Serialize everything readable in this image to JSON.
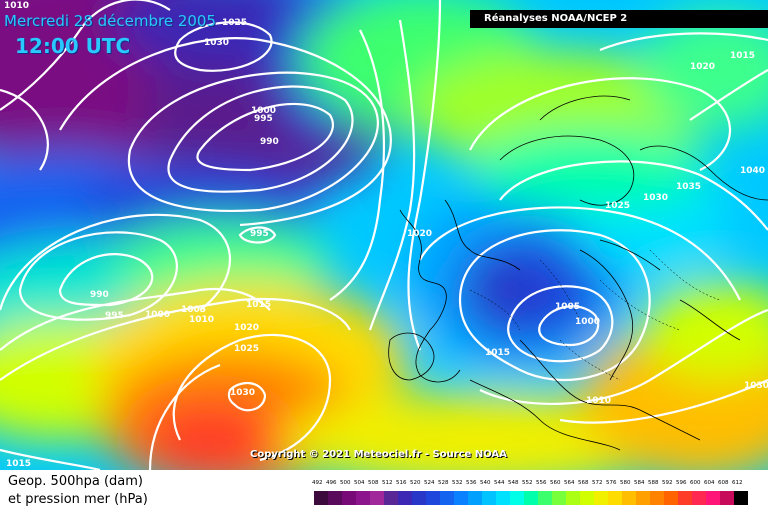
{
  "header": {
    "date": "Mercredi 28 décembre 2005",
    "time": "12:00 UTC",
    "source": "Réanalyses NOAA/NCEP 2"
  },
  "copyright": "Copyright © 2021 Meteociel.fr - Source NOAA",
  "legend": {
    "title_line1": "Geop. 500hpa (dam)",
    "title_line2": "et pression mer (hPa)",
    "ticks": [
      "492",
      "496",
      "500",
      "504",
      "508",
      "512",
      "516",
      "520",
      "524",
      "528",
      "532",
      "536",
      "540",
      "544",
      "548",
      "552",
      "556",
      "560",
      "564",
      "568",
      "572",
      "576",
      "580",
      "584",
      "588",
      "592",
      "596",
      "600",
      "604",
      "608",
      "612"
    ],
    "colors": [
      "#3c0a3c",
      "#5a0a5a",
      "#780a78",
      "#8c148c",
      "#a0289b",
      "#5a2896",
      "#3c28b4",
      "#2837c8",
      "#1e46dc",
      "#1464f0",
      "#0a82ff",
      "#00a0ff",
      "#00c3ff",
      "#00e1ff",
      "#00ffe6",
      "#00ffaa",
      "#3cff6e",
      "#78ff3c",
      "#aaff14",
      "#d2ff00",
      "#f0f000",
      "#ffdc00",
      "#ffbe00",
      "#ffa000",
      "#ff8200",
      "#ff6400",
      "#ff3c28",
      "#ff2850",
      "#ff1478",
      "#c80a5a",
      "#000000"
    ]
  },
  "pressure_labels": [
    "1010",
    "1025",
    "1030",
    "1000",
    "995",
    "990",
    "1020",
    "1015",
    "1015",
    "995",
    "990",
    "995",
    "1000",
    "1005",
    "1010",
    "1015",
    "1020",
    "1025",
    "1030",
    "1020",
    "1025",
    "1030",
    "1035",
    "1040",
    "1005",
    "1000",
    "1015",
    "1010",
    "1030",
    "1015"
  ],
  "colors": {
    "contour": "#ffffff",
    "coastline": "#000000",
    "title_cyan": "#29c8ff"
  }
}
